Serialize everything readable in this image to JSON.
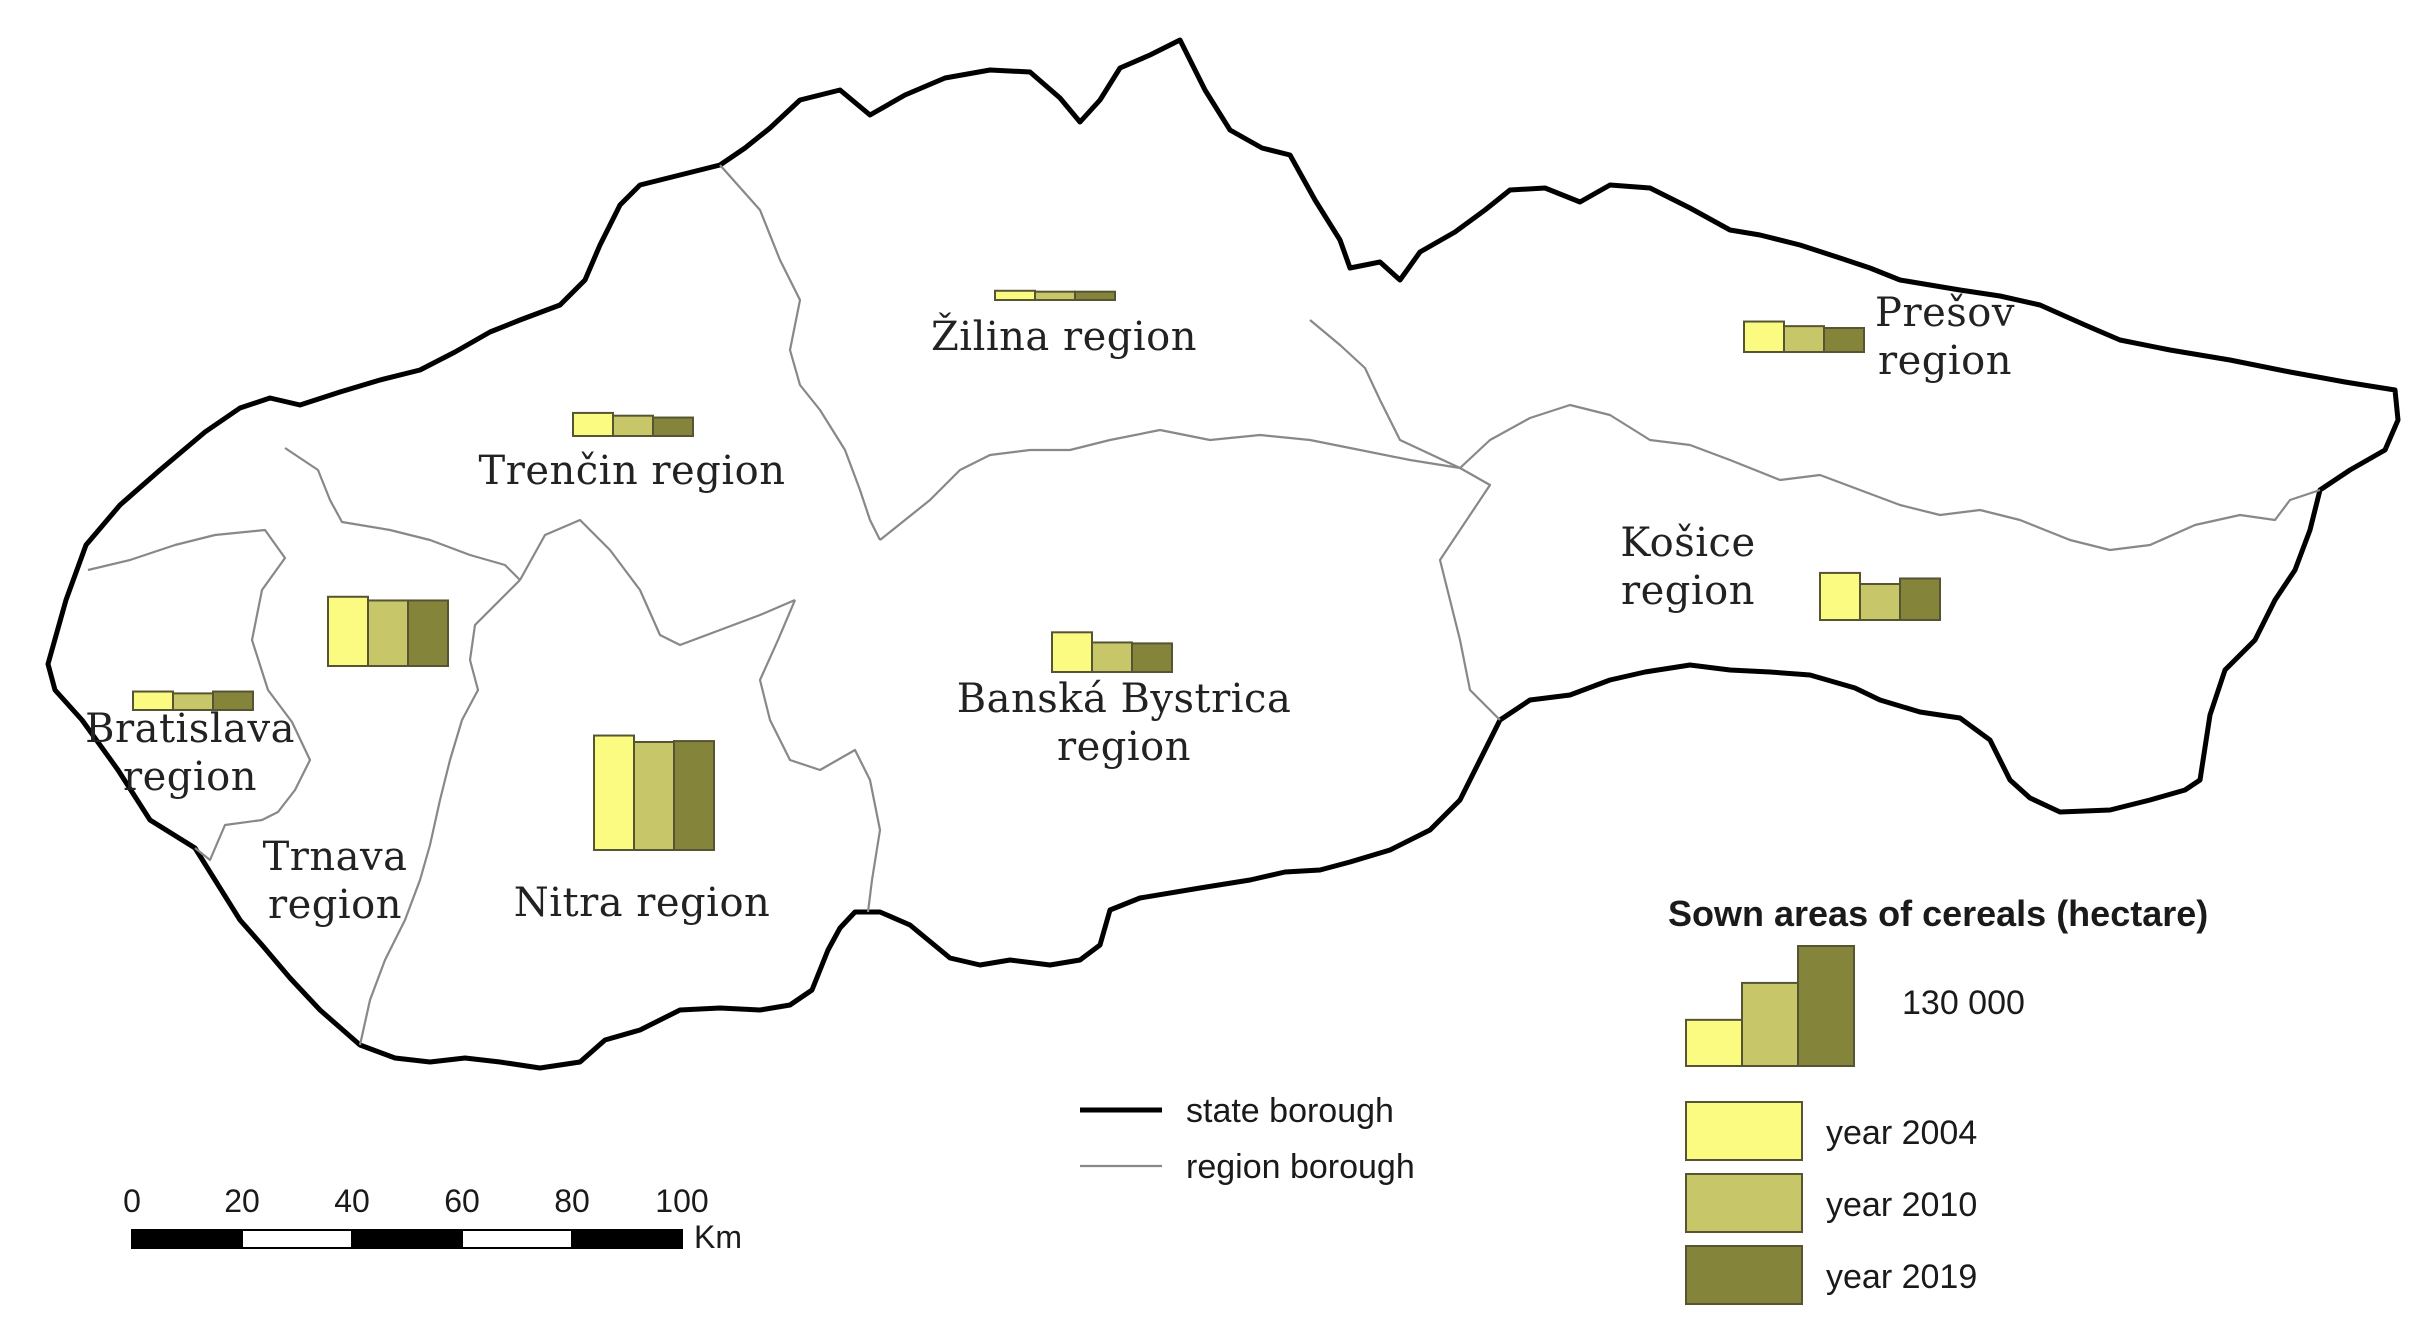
{
  "colors": {
    "year2004": "#fbfb82",
    "year2010": "#c7c76a",
    "year2019": "#84843a",
    "bar_stroke": "#555533",
    "state_border": "#000000",
    "region_border": "#888888"
  },
  "regions": [
    {
      "id": "bratislava",
      "label_lines": [
        "Bratislava",
        "region"
      ],
      "values": [
        20000,
        18000,
        20000
      ]
    },
    {
      "id": "trnava",
      "label_lines": [
        "Trnava",
        "region"
      ],
      "values": [
        75000,
        71000,
        71000
      ]
    },
    {
      "id": "trencin",
      "label_lines": [
        "Trenčin region"
      ],
      "values": [
        25000,
        22000,
        20000
      ]
    },
    {
      "id": "nitra",
      "label_lines": [
        "Nitra region"
      ],
      "values": [
        124000,
        117000,
        118000
      ]
    },
    {
      "id": "zilina",
      "label_lines": [
        "Žilina region"
      ],
      "values": [
        10000,
        9000,
        9000
      ]
    },
    {
      "id": "banska-bystrica",
      "label_lines": [
        "Banská Bystrica",
        "region"
      ],
      "values": [
        43000,
        32000,
        31000
      ]
    },
    {
      "id": "presov",
      "label_lines": [
        "Prešov",
        "region"
      ],
      "values": [
        33000,
        28000,
        26000
      ]
    },
    {
      "id": "kosice",
      "label_lines": [
        "Košice",
        "region"
      ],
      "values": [
        51000,
        39000,
        45000
      ]
    }
  ],
  "legend": {
    "title": "Sown areas of cereals (hectare)",
    "scale_value_label": "130 000",
    "scale_values": [
      50000,
      90000,
      130000
    ],
    "years": [
      "year 2004",
      "year 2010",
      "year 2019"
    ],
    "lines": [
      {
        "id": "state",
        "label": "state borough"
      },
      {
        "id": "region",
        "label": "region borough"
      }
    ]
  },
  "scalebar": {
    "ticks": [
      "0",
      "20",
      "40",
      "60",
      "80",
      "100"
    ],
    "unit": "Km"
  }
}
